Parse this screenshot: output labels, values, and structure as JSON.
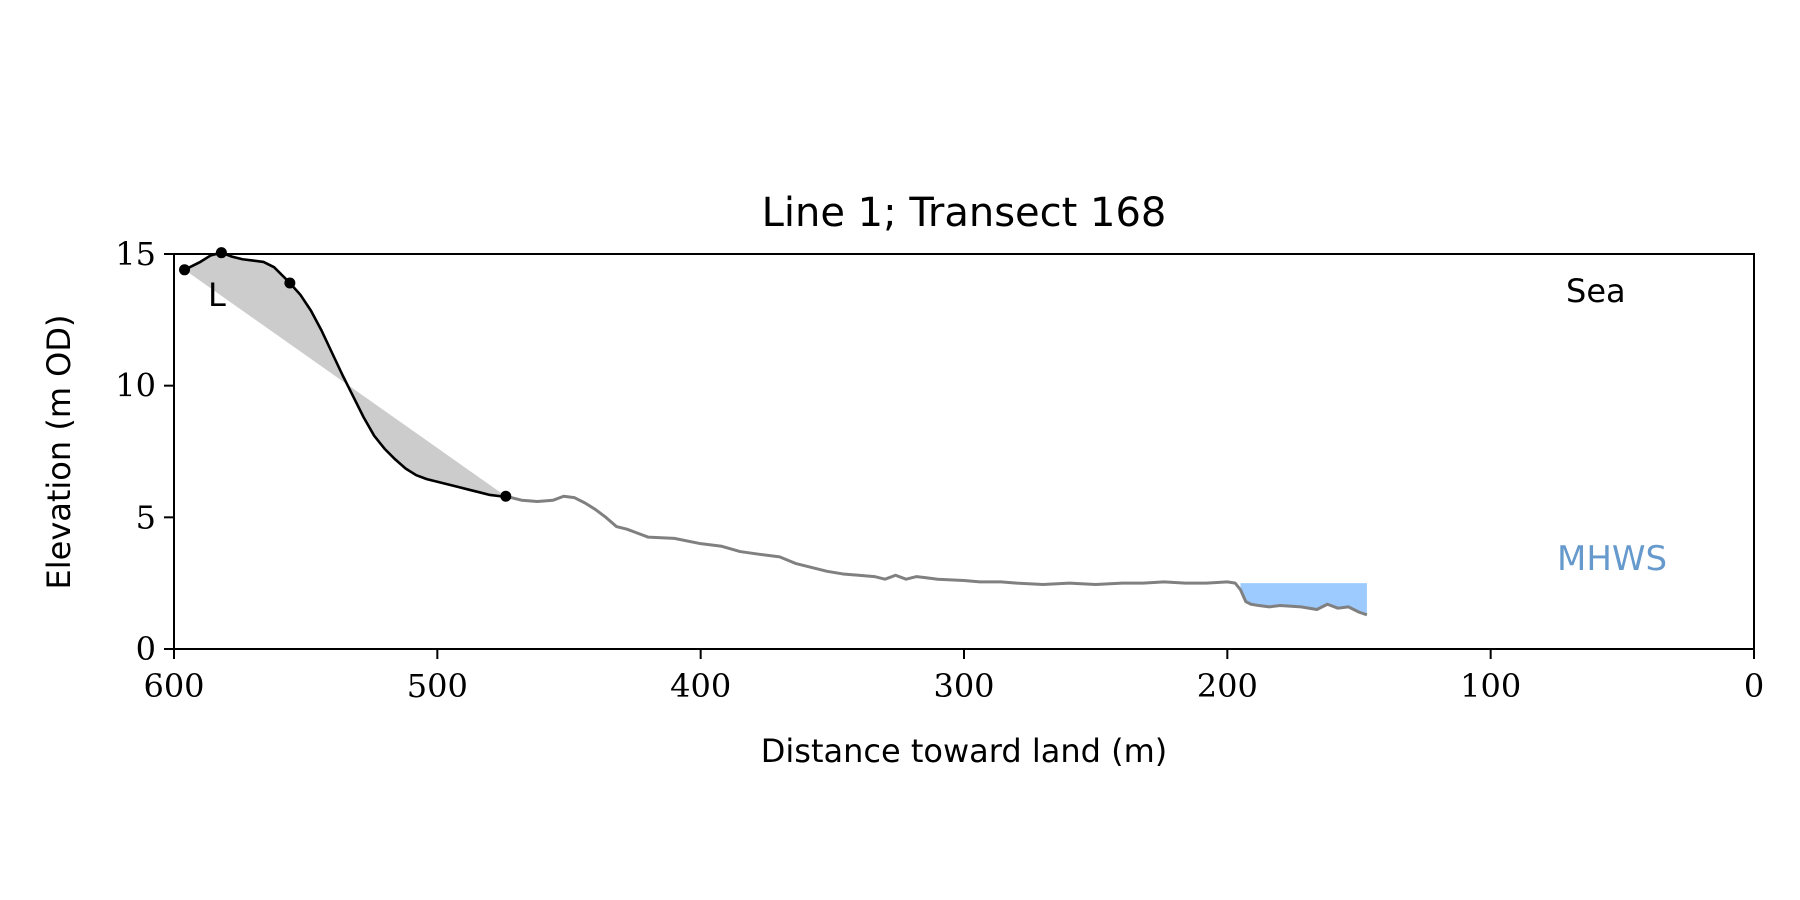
{
  "chart_data": {
    "type": "line",
    "title": "Line 1; Transect 168",
    "xlabel": "Distance toward land (m)",
    "ylabel": "Elevation (m OD)",
    "xlim": [
      600,
      0
    ],
    "ylim": [
      0,
      15
    ],
    "x_reversed": true,
    "xticks": [
      600,
      500,
      400,
      300,
      200,
      100,
      0
    ],
    "yticks": [
      0,
      5,
      10,
      15
    ],
    "grid": false,
    "colors": {
      "profile": "#808080",
      "cliff": "#000000",
      "cliff_fill": "#cccccc",
      "water": "#9ecbff",
      "mhws_text": "#6699cc"
    },
    "annotations": {
      "sea": "Sea",
      "mhws": "MHWS",
      "partial_label": "L"
    },
    "mhws_level": 2.5,
    "series": [
      {
        "role": "profile",
        "x": [
          474,
          468,
          462,
          456,
          452,
          448,
          444,
          440,
          436,
          432,
          428,
          420,
          410,
          400,
          392,
          385,
          378,
          370,
          364,
          360,
          352,
          346,
          340,
          334,
          330,
          326,
          322,
          318,
          314,
          310,
          300,
          294,
          286,
          280,
          270,
          260,
          250,
          240,
          232,
          224,
          216,
          208,
          200,
          197,
          195,
          193,
          191,
          188,
          184,
          180,
          172,
          166,
          162,
          158,
          154,
          150,
          147
        ],
        "y": [
          5.8,
          5.65,
          5.6,
          5.65,
          5.8,
          5.75,
          5.55,
          5.3,
          5.0,
          4.65,
          4.55,
          4.25,
          4.2,
          4.0,
          3.9,
          3.7,
          3.6,
          3.5,
          3.25,
          3.15,
          2.95,
          2.85,
          2.8,
          2.75,
          2.65,
          2.8,
          2.65,
          2.75,
          2.7,
          2.65,
          2.6,
          2.55,
          2.55,
          2.5,
          2.45,
          2.5,
          2.45,
          2.5,
          2.5,
          2.55,
          2.5,
          2.5,
          2.55,
          2.5,
          2.25,
          1.8,
          1.7,
          1.65,
          1.6,
          1.65,
          1.6,
          1.5,
          1.7,
          1.55,
          1.6,
          1.4,
          1.3
        ]
      },
      {
        "role": "cliff",
        "x": [
          596,
          590,
          586,
          582,
          578,
          574,
          570,
          566,
          562,
          558,
          556,
          552,
          548,
          544,
          540,
          536,
          532,
          528,
          524,
          520,
          516,
          512,
          508,
          504,
          500,
          496,
          492,
          488,
          484,
          480,
          476,
          474
        ],
        "y": [
          14.4,
          14.7,
          14.95,
          15.05,
          14.9,
          14.8,
          14.75,
          14.7,
          14.5,
          14.1,
          13.9,
          13.45,
          12.85,
          12.1,
          11.25,
          10.4,
          9.6,
          8.8,
          8.1,
          7.6,
          7.2,
          6.85,
          6.6,
          6.45,
          6.35,
          6.25,
          6.15,
          6.05,
          5.95,
          5.85,
          5.8,
          5.8
        ]
      }
    ],
    "markers": [
      {
        "x": 596,
        "y": 14.4
      },
      {
        "x": 582,
        "y": 15.05
      },
      {
        "x": 556,
        "y": 13.9
      },
      {
        "x": 474,
        "y": 5.8
      }
    ],
    "chord": {
      "x": [
        596,
        474
      ],
      "y": [
        14.4,
        5.8
      ]
    },
    "water_range": [
      196,
      147
    ]
  }
}
